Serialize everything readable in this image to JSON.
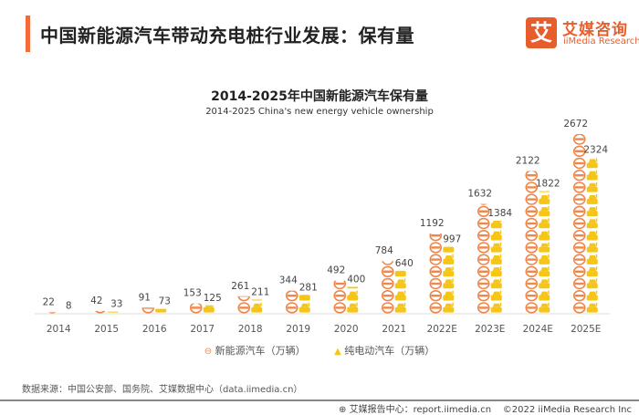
{
  "header": {
    "title": "中国新能源汽车带动充电桩行业发展：保有量",
    "logo_mark": "艾",
    "logo_cn": "艾媒咨询",
    "logo_en": "iiMedia Research"
  },
  "chart_data": {
    "type": "bar",
    "title": "2014-2025年中国新能源汽车保有量",
    "subtitle": "2014-2025 China's new energy vehicle ownership",
    "xlabel": "",
    "ylabel": "",
    "ylim": [
      0,
      2800
    ],
    "grid": false,
    "legend_position": "bottom",
    "categories": [
      "2014",
      "2015",
      "2016",
      "2017",
      "2018",
      "2019",
      "2020",
      "2021",
      "2022E",
      "2023E",
      "2024E",
      "2025E"
    ],
    "series": [
      {
        "name": "新能源汽车（万辆）",
        "color": "#f0874a",
        "values": [
          22,
          42,
          91,
          153,
          261,
          344,
          492,
          784,
          1192,
          1632,
          2122,
          2672
        ]
      },
      {
        "name": "纯电动汽车（万辆）",
        "color": "#f5c518",
        "values": [
          8,
          33,
          73,
          125,
          211,
          281,
          400,
          640,
          997,
          1384,
          1822,
          2324
        ]
      }
    ]
  },
  "legend": {
    "orange_icon": "car-front-icon",
    "yellow_icon": "charging-car-icon"
  },
  "footer": {
    "source": "数据来源：中国公安部、国务院、艾媒数据中心（data.iimedia.cn）",
    "report": "艾媒报告中心：report.iimedia.cn",
    "copyright": "©2022  iiMedia Research  Inc"
  }
}
